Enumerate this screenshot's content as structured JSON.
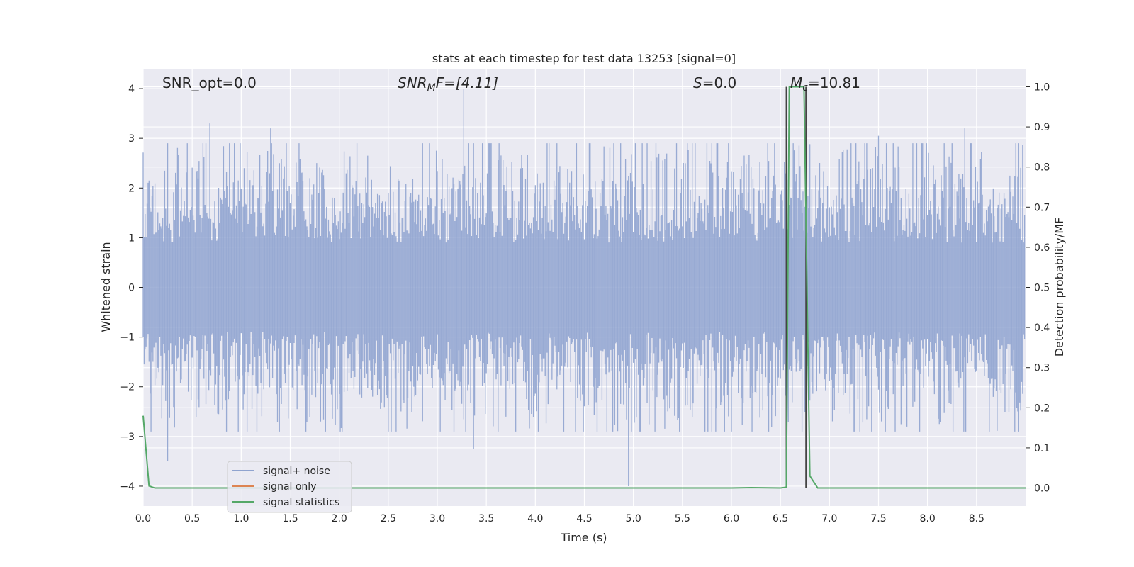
{
  "chart_data": {
    "type": "line",
    "title": "stats at each timestep for test data 13253 [signal=0]",
    "xlabel": "Time (s)",
    "ylabel": "Whitened strain",
    "y2label": "Detection probability/MF",
    "xlim": [
      0.0,
      9.0
    ],
    "ylim": [
      -4.4,
      4.4
    ],
    "y2lim": [
      -0.045,
      1.045
    ],
    "xticks": [
      "0.0",
      "0.5",
      "1.0",
      "1.5",
      "2.0",
      "2.5",
      "3.0",
      "3.5",
      "4.0",
      "4.5",
      "5.0",
      "5.5",
      "6.0",
      "6.5",
      "7.0",
      "7.5",
      "8.0",
      "8.5"
    ],
    "yticks": [
      "4",
      "3",
      "2",
      "1",
      "0",
      "−1",
      "−2",
      "−3",
      "−4"
    ],
    "y2ticks": [
      "1.0",
      "0.9",
      "0.8",
      "0.7",
      "0.6",
      "0.5",
      "0.4",
      "0.3",
      "0.2",
      "0.1",
      "0.0"
    ],
    "grid": true,
    "legend_position": "lower-left",
    "annotations": {
      "snr_opt": "SNR_opt=0.0",
      "snr_mf_main": "SNR",
      "snr_mf_sub": "M",
      "snr_mf_tail": "F=[4.11]",
      "s_main": "S",
      "s_tail": "=0.0",
      "mc_main": "M",
      "mc_sub": "c",
      "mc_tail": "=10.81"
    },
    "series": [
      {
        "name": "signal+ noise",
        "color": "#8fa3cf",
        "noise_std": 0.8,
        "sample_count": 900,
        "peaks": [
          {
            "x": 3.27,
            "y": 4.0
          },
          {
            "x": 0.68,
            "y": 3.3
          },
          {
            "x": 1.3,
            "y": 3.2
          },
          {
            "x": 8.38,
            "y": 3.2
          },
          {
            "x": 4.95,
            "y": -4.0
          },
          {
            "x": 0.25,
            "y": -3.5
          },
          {
            "x": 3.37,
            "y": -3.25
          },
          {
            "x": 7.5,
            "y": 3.05
          }
        ]
      },
      {
        "name": "signal only",
        "color": "#dd8452",
        "values": []
      },
      {
        "name": "signal statistics",
        "color": "#55a868",
        "axis": "right",
        "x": [
          0.0,
          0.06,
          0.12,
          1.0,
          2.0,
          3.0,
          4.0,
          5.0,
          6.0,
          6.2,
          6.5,
          6.56,
          6.59,
          6.65,
          6.74,
          6.8,
          6.88,
          7.0,
          8.0,
          9.0
        ],
        "y": [
          0.18,
          0.005,
          0.0,
          0.0,
          0.0,
          0.0,
          0.0,
          0.0,
          0.0,
          0.001,
          0.0,
          0.002,
          1.0,
          1.0,
          1.0,
          0.03,
          0.0,
          0.0,
          0.0,
          0.0
        ]
      }
    ],
    "vlines": [
      {
        "x": 6.56,
        "y_from": 0.0,
        "y_to": 1.0,
        "color": "#444444"
      },
      {
        "x": 6.76,
        "y_from": 0.0,
        "y_to": 1.0,
        "color": "#444444"
      }
    ]
  }
}
